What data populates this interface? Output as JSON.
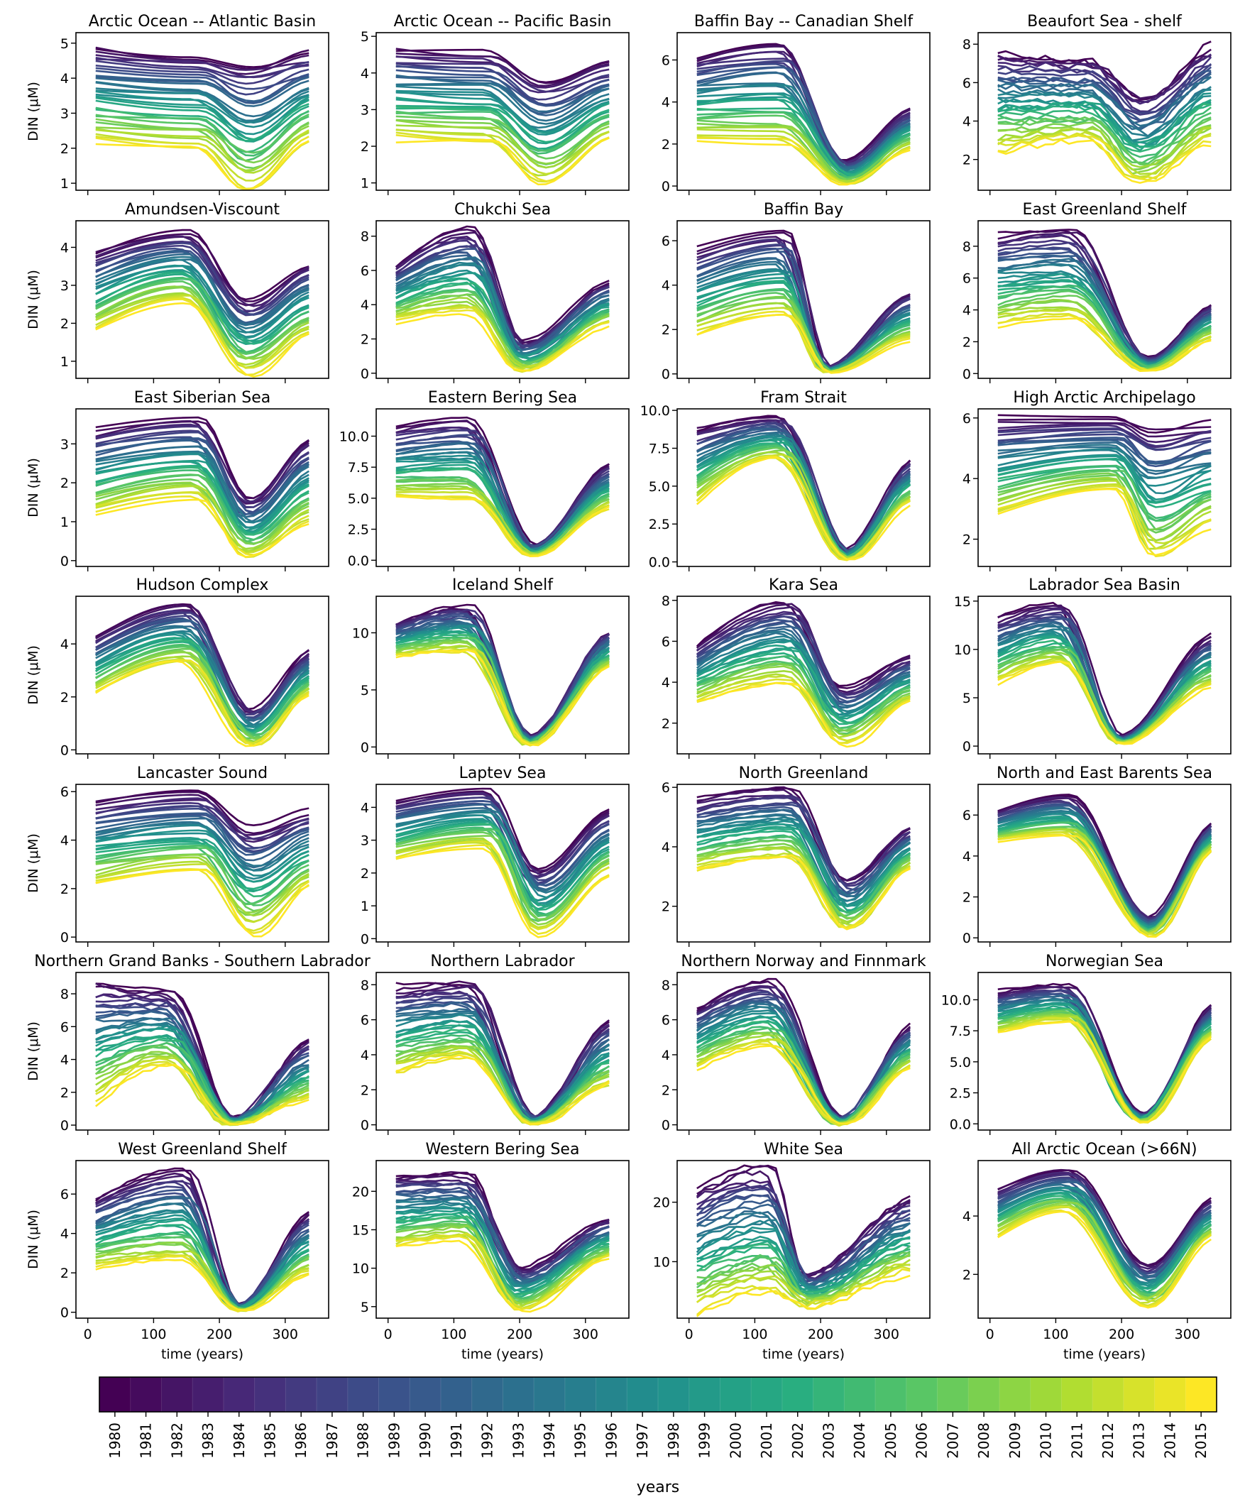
{
  "figure": {
    "ylabel": "DIN (μM)",
    "xlabel": "time (years)",
    "xticks": [
      0,
      100,
      200,
      300
    ],
    "colorbar_label": "years",
    "years": [
      "1980",
      "1981",
      "1982",
      "1983",
      "1984",
      "1985",
      "1986",
      "1987",
      "1988",
      "1989",
      "1990",
      "1991",
      "1992",
      "1993",
      "1994",
      "1995",
      "1996",
      "1997",
      "1998",
      "1999",
      "2000",
      "2001",
      "2002",
      "2003",
      "2004",
      "2005",
      "2006",
      "2007",
      "2008",
      "2009",
      "2010",
      "2011",
      "2012",
      "2013",
      "2014",
      "2015"
    ],
    "colormap_stops": [
      "#440154",
      "#472c7a",
      "#3b518b",
      "#2c718e",
      "#21908d",
      "#27ad81",
      "#5cc863",
      "#aadc32",
      "#fde725"
    ]
  },
  "chart_data": [
    {
      "type": "line",
      "title": "Arctic Ocean -- Atlantic Basin",
      "ylim": [
        0.8,
        5.3
      ],
      "yticks": [
        1,
        2,
        3,
        4,
        5
      ],
      "yfmt": "int",
      "profile": {
        "hi": [
          4.9,
          4.7
        ],
        "lo": [
          2.2,
          2.0
        ],
        "min_hi": 4.4,
        "min_lo": 0.75,
        "end_hi": 4.8,
        "end_lo": 2.2,
        "t_drop": 165,
        "t_min": 245,
        "spikes": 0
      }
    },
    {
      "type": "line",
      "title": "Arctic Ocean -- Pacific Basin",
      "ylim": [
        0.8,
        5.1
      ],
      "yticks": [
        1,
        2,
        3,
        4,
        5
      ],
      "yfmt": "int",
      "profile": {
        "hi": [
          4.7,
          4.6
        ],
        "lo": [
          2.2,
          2.1
        ],
        "min_hi": 3.8,
        "min_lo": 0.9,
        "end_hi": 4.3,
        "end_lo": 2.2,
        "t_drop": 150,
        "t_min": 235,
        "spikes": 0
      }
    },
    {
      "type": "line",
      "title": "Baffin Bay -- Canadian Shelf",
      "ylim": [
        -0.2,
        7.3
      ],
      "yticks": [
        0,
        2,
        4,
        6
      ],
      "yfmt": "int",
      "profile": {
        "hi": [
          6.2,
          6.9
        ],
        "lo": [
          2.2,
          2.0
        ],
        "min_hi": 1.2,
        "min_lo": 0.05,
        "end_hi": 3.7,
        "end_lo": 1.8,
        "t_drop": 140,
        "t_min": 240,
        "spikes": 0
      }
    },
    {
      "type": "line",
      "title": "Beaufort Sea - shelf",
      "ylim": [
        0.4,
        8.6
      ],
      "yticks": [
        2,
        4,
        6,
        8
      ],
      "yfmt": "int",
      "profile": {
        "hi": [
          7.6,
          7.2
        ],
        "lo": [
          2.4,
          3.0
        ],
        "min_hi": 5.2,
        "min_lo": 0.7,
        "end_hi": 8.0,
        "end_lo": 3.0,
        "t_drop": 150,
        "t_min": 230,
        "spikes": 0.6
      }
    },
    {
      "type": "line",
      "title": "Amundsen-Viscount",
      "ylim": [
        0.55,
        4.7
      ],
      "yticks": [
        1,
        2,
        3,
        4
      ],
      "yfmt": "int",
      "profile": {
        "hi": [
          3.9,
          4.4
        ],
        "lo": [
          1.8,
          2.6
        ],
        "min_hi": 2.6,
        "min_lo": 0.65,
        "end_hi": 3.6,
        "end_lo": 1.7,
        "t_drop": 145,
        "t_min": 245,
        "spikes": 0
      }
    },
    {
      "type": "line",
      "title": "Chukchi Sea",
      "ylim": [
        -0.3,
        8.9
      ],
      "yticks": [
        0,
        2,
        4,
        6,
        8
      ],
      "yfmt": "int",
      "profile": {
        "hi": [
          6.3,
          8.4
        ],
        "lo": [
          3.0,
          3.5
        ],
        "min_hi": 1.8,
        "min_lo": 0.05,
        "end_hi": 5.4,
        "end_lo": 2.8,
        "t_drop": 125,
        "t_min": 205,
        "spikes": 0.2
      }
    },
    {
      "type": "line",
      "title": "Baffin Bay",
      "ylim": [
        -0.2,
        6.9
      ],
      "yticks": [
        0,
        2,
        4,
        6
      ],
      "yfmt": "int",
      "profile": {
        "hi": [
          5.6,
          6.5
        ],
        "lo": [
          1.7,
          2.6
        ],
        "min_hi": 0.3,
        "min_lo": 0.05,
        "end_hi": 3.7,
        "end_lo": 1.5,
        "t_drop": 140,
        "t_min": 210,
        "spikes": 0
      }
    },
    {
      "type": "line",
      "title": "East Greenland Shelf",
      "ylim": [
        -0.3,
        9.6
      ],
      "yticks": [
        0,
        2,
        4,
        6,
        8
      ],
      "yfmt": "int",
      "profile": {
        "hi": [
          8.7,
          9.1
        ],
        "lo": [
          3.0,
          3.5
        ],
        "min_hi": 1.0,
        "min_lo": 0.1,
        "end_hi": 4.4,
        "end_lo": 2.2,
        "t_drop": 120,
        "t_min": 240,
        "spikes": 0.2
      }
    },
    {
      "type": "line",
      "title": "East Siberian Sea",
      "ylim": [
        -0.15,
        3.9
      ],
      "yticks": [
        0,
        1,
        2,
        3
      ],
      "yfmt": "int",
      "profile": {
        "hi": [
          3.4,
          3.7
        ],
        "lo": [
          1.2,
          1.6
        ],
        "min_hi": 1.6,
        "min_lo": 0.05,
        "end_hi": 3.15,
        "end_lo": 1.0,
        "t_drop": 165,
        "t_min": 245,
        "spikes": 0
      }
    },
    {
      "type": "line",
      "title": "Eastern Bering Sea",
      "ylim": [
        -0.5,
        12.2
      ],
      "yticks": [
        0,
        2.5,
        5,
        7.5,
        10
      ],
      "yfmt": "1",
      "profile": {
        "hi": [
          10.7,
          11.4
        ],
        "lo": [
          4.9,
          4.8
        ],
        "min_hi": 1.2,
        "min_lo": 0.3,
        "end_hi": 7.9,
        "end_lo": 4.2,
        "t_drop": 120,
        "t_min": 220,
        "spikes": 0.1
      }
    },
    {
      "type": "line",
      "title": "Fram Strait",
      "ylim": [
        -0.3,
        10.1
      ],
      "yticks": [
        0,
        2.5,
        5,
        7.5,
        10
      ],
      "yfmt": "1",
      "profile": {
        "hi": [
          8.8,
          9.6
        ],
        "lo": [
          3.9,
          6.8
        ],
        "min_hi": 0.8,
        "min_lo": 0.1,
        "end_hi": 6.9,
        "end_lo": 3.9,
        "t_drop": 135,
        "t_min": 240,
        "spikes": 0.1
      }
    },
    {
      "type": "line",
      "title": "High Arctic Archipelago",
      "ylim": [
        1.1,
        6.3
      ],
      "yticks": [
        2,
        4,
        6
      ],
      "yfmt": "int",
      "profile": {
        "hi": [
          6.0,
          6.0
        ],
        "lo": [
          2.8,
          3.6
        ],
        "min_hi": 5.7,
        "min_lo": 1.3,
        "end_hi": 5.9,
        "end_lo": 2.5,
        "t_drop": 190,
        "t_min": 250,
        "spikes": 0
      }
    },
    {
      "type": "line",
      "title": "Hudson Complex",
      "ylim": [
        -0.15,
        5.8
      ],
      "yticks": [
        0,
        2,
        4
      ],
      "yfmt": "int",
      "profile": {
        "hi": [
          4.3,
          5.5
        ],
        "lo": [
          2.1,
          3.3
        ],
        "min_hi": 1.5,
        "min_lo": 0.1,
        "end_hi": 3.8,
        "end_lo": 2.1,
        "t_drop": 145,
        "t_min": 250,
        "spikes": 0
      }
    },
    {
      "type": "line",
      "title": "Iceland Shelf",
      "ylim": [
        -0.6,
        13.2
      ],
      "yticks": [
        0,
        5,
        10
      ],
      "yfmt": "int",
      "profile": {
        "hi": [
          10.8,
          12.4
        ],
        "lo": [
          7.9,
          8.3
        ],
        "min_hi": 1.0,
        "min_lo": 0.1,
        "end_hi": 10.3,
        "end_lo": 7.0,
        "t_drop": 120,
        "t_min": 215,
        "spikes": 0.3
      }
    },
    {
      "type": "line",
      "title": "Kara Sea",
      "ylim": [
        0.5,
        8.2
      ],
      "yticks": [
        2,
        4,
        6,
        8
      ],
      "yfmt": "int",
      "profile": {
        "hi": [
          5.8,
          7.9
        ],
        "lo": [
          3.0,
          4.0
        ],
        "min_hi": 3.7,
        "min_lo": 0.9,
        "end_hi": 5.3,
        "end_lo": 3.1,
        "t_drop": 150,
        "t_min": 235,
        "spikes": 0.2
      }
    },
    {
      "type": "line",
      "title": "Labrador Sea Basin",
      "ylim": [
        -0.8,
        15.5
      ],
      "yticks": [
        0,
        5,
        10,
        15
      ],
      "yfmt": "int",
      "profile": {
        "hi": [
          13.2,
          14.7
        ],
        "lo": [
          6.5,
          8.5
        ],
        "min_hi": 1.0,
        "min_lo": 0.2,
        "end_hi": 11.6,
        "end_lo": 6.2,
        "t_drop": 105,
        "t_min": 200,
        "spikes": 0.2
      }
    },
    {
      "type": "line",
      "title": "Lancaster Sound",
      "ylim": [
        -0.2,
        6.3
      ],
      "yticks": [
        0,
        2,
        4,
        6
      ],
      "yfmt": "int",
      "profile": {
        "hi": [
          5.6,
          6.0
        ],
        "lo": [
          2.2,
          2.7
        ],
        "min_hi": 4.5,
        "min_lo": 0.2,
        "end_hi": 5.2,
        "end_lo": 2.1,
        "t_drop": 170,
        "t_min": 250,
        "spikes": 0
      }
    },
    {
      "type": "line",
      "title": "Laptev Sea",
      "ylim": [
        -0.1,
        4.7
      ],
      "yticks": [
        0,
        1,
        2,
        3,
        4
      ],
      "yfmt": "int",
      "profile": {
        "hi": [
          4.2,
          4.6
        ],
        "lo": [
          2.4,
          2.8
        ],
        "min_hi": 2.1,
        "min_lo": 0.1,
        "end_hi": 3.9,
        "end_lo": 2.0,
        "t_drop": 150,
        "t_min": 230,
        "spikes": 0
      }
    },
    {
      "type": "line",
      "title": "North Greenland",
      "ylim": [
        0.8,
        6.1
      ],
      "yticks": [
        2,
        4,
        6
      ],
      "yfmt": "int",
      "profile": {
        "hi": [
          5.6,
          6.0
        ],
        "lo": [
          3.2,
          3.6
        ],
        "min_hi": 2.9,
        "min_lo": 1.2,
        "end_hi": 4.7,
        "end_lo": 3.3,
        "t_drop": 150,
        "t_min": 240,
        "spikes": 0.2
      }
    },
    {
      "type": "line",
      "title": "North and East Barents Sea",
      "ylim": [
        -0.2,
        7.5
      ],
      "yticks": [
        0,
        2,
        4,
        6
      ],
      "yfmt": "int",
      "profile": {
        "hi": [
          6.2,
          7.0
        ],
        "lo": [
          4.7,
          5.0
        ],
        "min_hi": 1.0,
        "min_lo": 0.05,
        "end_hi": 5.7,
        "end_lo": 4.3,
        "t_drop": 115,
        "t_min": 245,
        "spikes": 0
      }
    },
    {
      "type": "line",
      "title": "Northern Grand Banks - Southern Labrador",
      "ylim": [
        -0.3,
        9.3
      ],
      "yticks": [
        0,
        2,
        4,
        6,
        8
      ],
      "yfmt": "int",
      "profile": {
        "hi": [
          8.8,
          8.3
        ],
        "lo": [
          1.4,
          3.5
        ],
        "min_hi": 0.5,
        "min_lo": 0.0,
        "end_hi": 5.2,
        "end_lo": 1.6,
        "t_drop": 120,
        "t_min": 220,
        "spikes": 0.4
      }
    },
    {
      "type": "line",
      "title": "Northern Labrador",
      "ylim": [
        -0.3,
        8.7
      ],
      "yticks": [
        0,
        2,
        4,
        6,
        8
      ],
      "yfmt": "int",
      "profile": {
        "hi": [
          7.9,
          8.1
        ],
        "lo": [
          2.9,
          3.8
        ],
        "min_hi": 0.4,
        "min_lo": 0.0,
        "end_hi": 6.1,
        "end_lo": 2.2,
        "t_drop": 120,
        "t_min": 220,
        "spikes": 0.3
      }
    },
    {
      "type": "line",
      "title": "Northern Norway and Finnmark",
      "ylim": [
        -0.3,
        8.7
      ],
      "yticks": [
        0,
        2,
        4,
        6,
        8
      ],
      "yfmt": "int",
      "profile": {
        "hi": [
          6.7,
          8.2
        ],
        "lo": [
          3.2,
          4.5
        ],
        "min_hi": 0.4,
        "min_lo": 0.0,
        "end_hi": 5.8,
        "end_lo": 3.3,
        "t_drop": 120,
        "t_min": 230,
        "spikes": 0.3
      }
    },
    {
      "type": "line",
      "title": "Norwegian Sea",
      "ylim": [
        -0.5,
        12.2
      ],
      "yticks": [
        0,
        2.5,
        5,
        7.5,
        10
      ],
      "yfmt": "1",
      "profile": {
        "hi": [
          10.7,
          11.2
        ],
        "lo": [
          7.3,
          8.3
        ],
        "min_hi": 0.8,
        "min_lo": 0.1,
        "end_hi": 9.7,
        "end_lo": 7.0,
        "t_drop": 115,
        "t_min": 230,
        "spikes": 0.2
      }
    },
    {
      "type": "line",
      "title": "West Greenland Shelf",
      "ylim": [
        -0.3,
        7.7
      ],
      "yticks": [
        0,
        2,
        4,
        6
      ],
      "yfmt": "int",
      "profile": {
        "hi": [
          5.8,
          7.3
        ],
        "lo": [
          2.2,
          2.6
        ],
        "min_hi": 0.4,
        "min_lo": 0.05,
        "end_hi": 5.2,
        "end_lo": 2.0,
        "t_drop": 145,
        "t_min": 230,
        "spikes": 0.2
      }
    },
    {
      "type": "line",
      "title": "Western Bering Sea",
      "ylim": [
        3.5,
        24.0
      ],
      "yticks": [
        5,
        10,
        15,
        20
      ],
      "yfmt": "int",
      "profile": {
        "hi": [
          22.3,
          22.3
        ],
        "lo": [
          12.5,
          13.5
        ],
        "min_hi": 10.0,
        "min_lo": 4.5,
        "end_hi": 16.4,
        "end_lo": 11.5,
        "t_drop": 115,
        "t_min": 200,
        "spikes": 0.3
      }
    },
    {
      "type": "line",
      "title": "White Sea",
      "ylim": [
        0.5,
        27.0
      ],
      "yticks": [
        10,
        20
      ],
      "yfmt": "int",
      "profile": {
        "hi": [
          22.0,
          26.0
        ],
        "lo": [
          1.5,
          5.0
        ],
        "min_hi": 8.0,
        "min_lo": 2.5,
        "end_hi": 21.0,
        "end_lo": 8.0,
        "t_drop": 120,
        "t_min": 180,
        "spikes": 0.6
      }
    },
    {
      "type": "line",
      "title": "All Arctic Ocean (>66N)",
      "ylim": [
        0.5,
        5.9
      ],
      "yticks": [
        2,
        4
      ],
      "yfmt": "int",
      "profile": {
        "hi": [
          4.9,
          5.6
        ],
        "lo": [
          3.3,
          4.2
        ],
        "min_hi": 2.3,
        "min_lo": 0.9,
        "end_hi": 4.6,
        "end_lo": 3.3,
        "t_drop": 115,
        "t_min": 240,
        "spikes": 0
      }
    }
  ]
}
